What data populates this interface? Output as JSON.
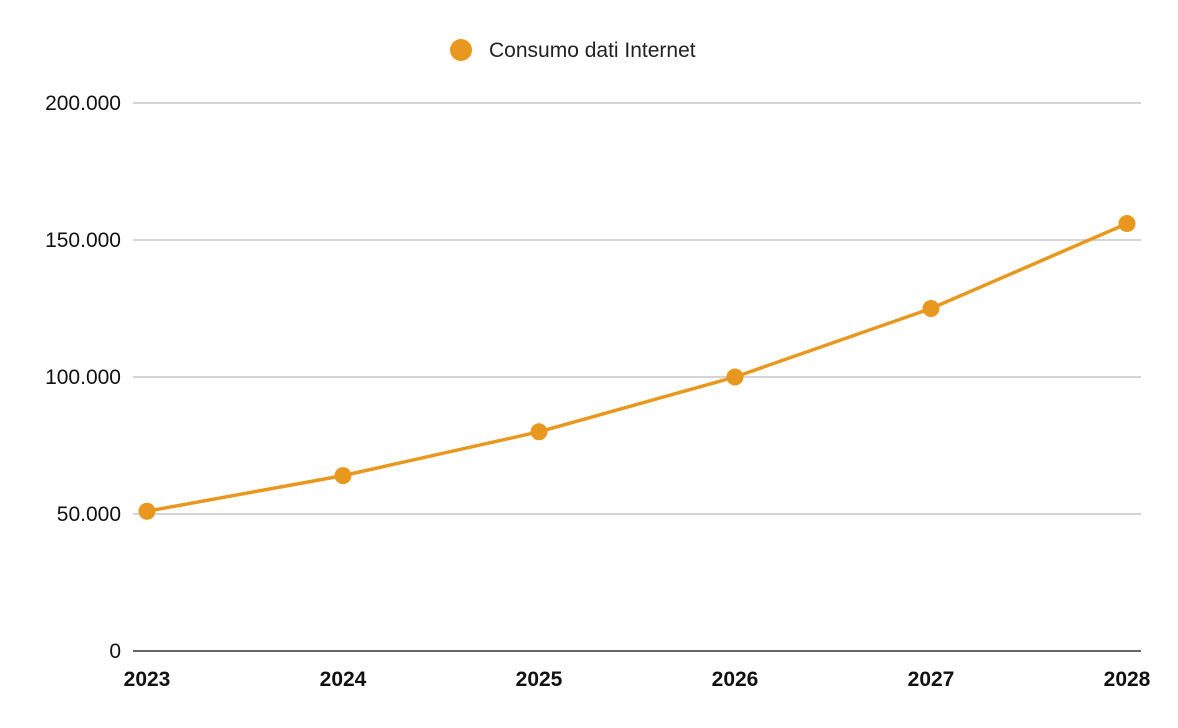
{
  "chart_data": {
    "type": "line",
    "categories": [
      "2023",
      "2024",
      "2025",
      "2026",
      "2027",
      "2028"
    ],
    "series": [
      {
        "name": "Consumo dati Internet",
        "color": "#E8981F",
        "values": [
          51000,
          64000,
          80000,
          100000,
          125000,
          156000
        ]
      }
    ],
    "ylim": [
      0,
      200000
    ],
    "yticks": [
      0,
      50000,
      100000,
      150000,
      200000
    ],
    "ytick_labels": [
      "0",
      "50.000",
      "100.000",
      "150.000",
      "200.000"
    ],
    "grid": true,
    "legend_position": "top-center",
    "title": "",
    "xlabel": "",
    "ylabel": ""
  }
}
